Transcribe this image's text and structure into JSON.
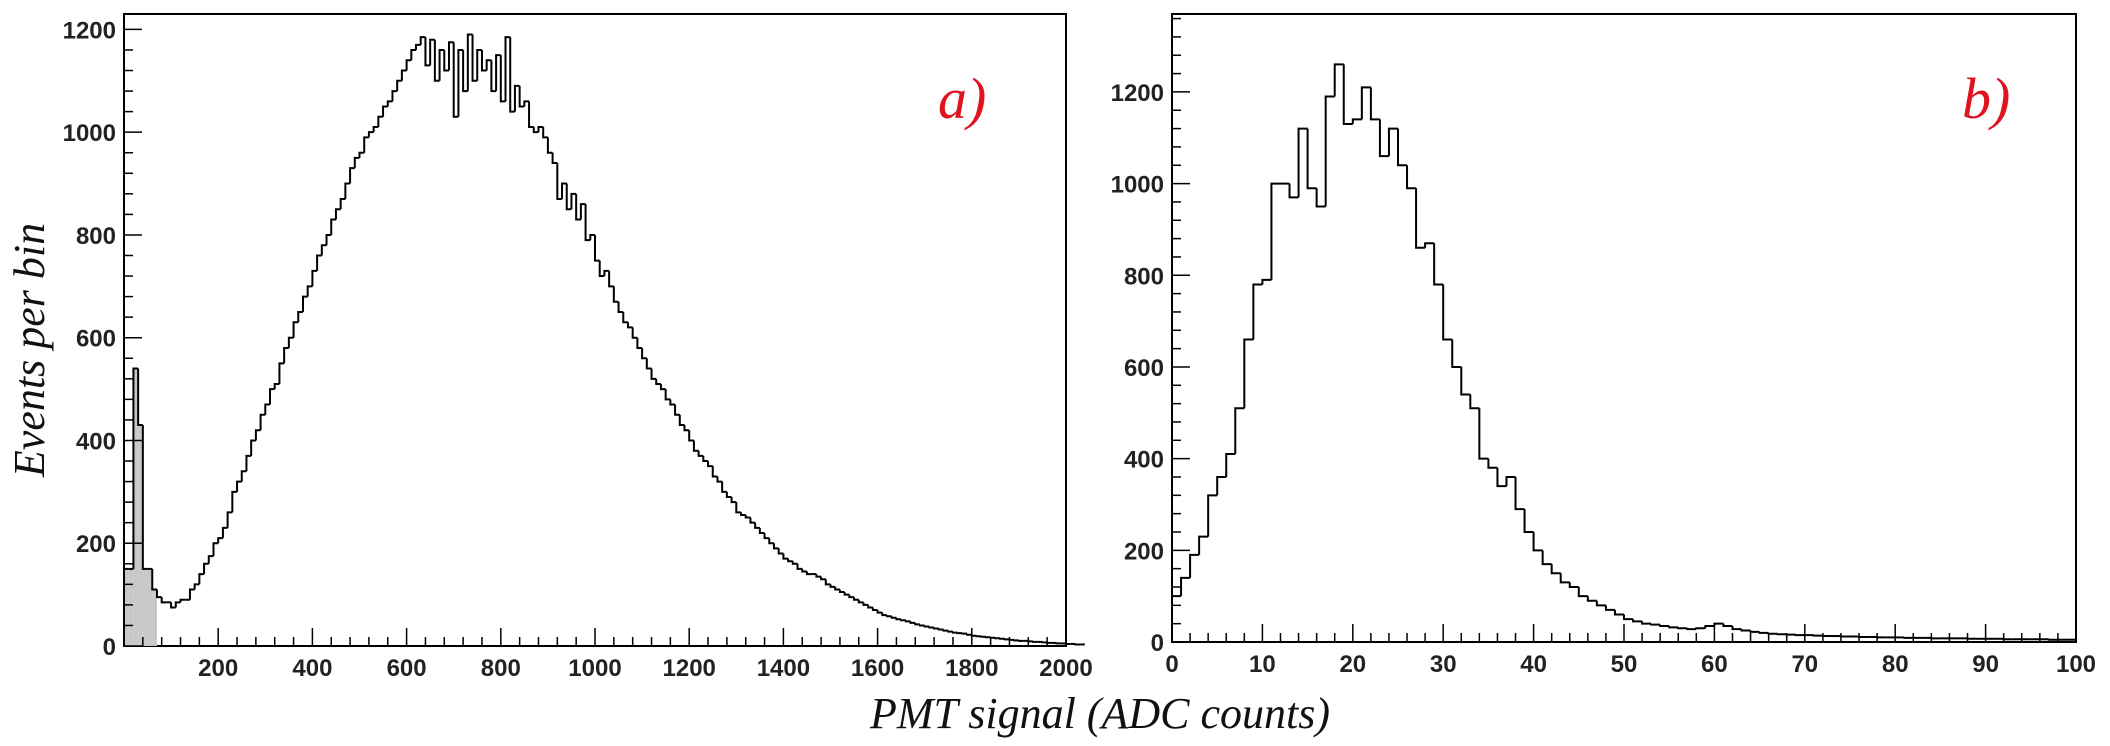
{
  "figure": {
    "ylabel": "Events per bin",
    "xlabel": "PMT signal (ADC counts)",
    "label_color": "#e0141e",
    "shade_color": "#c8c8c8"
  },
  "chart_data": [
    {
      "type": "bar",
      "panel_label": "a)",
      "xlim": [
        0,
        2000
      ],
      "ylim": [
        0,
        1230
      ],
      "x_ticks": [
        200,
        400,
        600,
        800,
        1000,
        1200,
        1400,
        1600,
        1800,
        2000
      ],
      "y_ticks": [
        0,
        200,
        400,
        600,
        800,
        1000,
        1200
      ],
      "bin_width": 10,
      "x_start": 0,
      "values": [
        150,
        150,
        540,
        430,
        150,
        150,
        110,
        95,
        85,
        85,
        75,
        85,
        90,
        90,
        110,
        120,
        140,
        160,
        175,
        200,
        210,
        230,
        260,
        300,
        320,
        340,
        370,
        400,
        420,
        450,
        470,
        500,
        510,
        550,
        580,
        600,
        630,
        650,
        680,
        700,
        730,
        760,
        780,
        800,
        830,
        850,
        870,
        900,
        930,
        950,
        960,
        990,
        1000,
        1010,
        1030,
        1050,
        1060,
        1080,
        1100,
        1120,
        1140,
        1160,
        1170,
        1185,
        1130,
        1180,
        1100,
        1160,
        1120,
        1175,
        1030,
        1160,
        1080,
        1190,
        1100,
        1160,
        1120,
        1140,
        1080,
        1150,
        1060,
        1185,
        1040,
        1090,
        1050,
        1060,
        1010,
        1000,
        1010,
        990,
        960,
        940,
        870,
        900,
        850,
        880,
        830,
        860,
        790,
        800,
        750,
        720,
        730,
        700,
        670,
        650,
        630,
        620,
        600,
        580,
        560,
        540,
        520,
        510,
        500,
        480,
        470,
        450,
        430,
        420,
        400,
        380,
        370,
        360,
        350,
        330,
        320,
        300,
        290,
        280,
        260,
        255,
        250,
        240,
        230,
        220,
        210,
        200,
        190,
        180,
        170,
        165,
        160,
        150,
        145,
        140,
        140,
        135,
        130,
        120,
        115,
        110,
        105,
        100,
        95,
        90,
        85,
        80,
        75,
        70,
        65,
        60,
        58,
        55,
        52,
        50,
        48,
        45,
        42,
        40,
        38,
        36,
        34,
        32,
        30,
        28,
        26,
        25,
        24,
        22,
        20,
        19,
        18,
        17,
        16,
        15,
        14,
        13,
        12,
        11,
        10,
        10,
        9,
        8,
        8,
        7,
        6,
        6,
        5,
        5,
        4,
        4,
        3,
        3
      ],
      "shaded_bins": [
        0,
        1,
        2,
        3,
        4,
        5,
        6
      ]
    },
    {
      "type": "bar",
      "panel_label": "b)",
      "xlim": [
        0,
        100
      ],
      "ylim": [
        0,
        1370
      ],
      "x_ticks": [
        0,
        10,
        20,
        30,
        40,
        50,
        60,
        70,
        80,
        90,
        100
      ],
      "y_ticks": [
        0,
        200,
        400,
        600,
        800,
        1000,
        1200
      ],
      "bin_width": 1,
      "x_start": 0,
      "values": [
        100,
        140,
        190,
        230,
        320,
        360,
        410,
        510,
        660,
        780,
        790,
        1000,
        1000,
        970,
        1120,
        990,
        950,
        1190,
        1260,
        1130,
        1140,
        1210,
        1140,
        1060,
        1120,
        1040,
        990,
        860,
        870,
        780,
        660,
        600,
        540,
        510,
        400,
        380,
        340,
        360,
        290,
        240,
        200,
        170,
        150,
        130,
        120,
        100,
        90,
        80,
        70,
        60,
        50,
        45,
        40,
        38,
        35,
        32,
        30,
        28,
        30,
        35,
        40,
        35,
        28,
        25,
        22,
        20,
        18,
        17,
        16,
        15,
        15,
        14,
        13,
        13,
        12,
        12,
        11,
        11,
        10,
        10,
        10,
        9,
        9,
        9,
        8,
        8,
        8,
        8,
        7,
        7,
        7,
        7,
        6,
        6,
        6,
        6,
        6,
        5,
        5,
        5
      ]
    }
  ]
}
